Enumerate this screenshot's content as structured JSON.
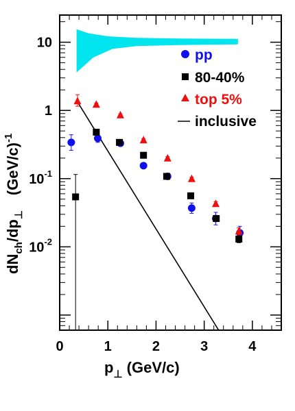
{
  "chart_data": {
    "type": "scatter",
    "title": "",
    "xlabel_parts": {
      "main": "p",
      "sub": "⊥",
      "unit": " (GeV/c)"
    },
    "ylabel_parts": {
      "main": "dN",
      "sub1": "ch",
      "mid": "/dp",
      "sub2": "⊥",
      "unit": "(GeV/c)",
      "unit_exp": "-1"
    },
    "xlim": [
      0,
      4.6
    ],
    "ylim": [
      0.0006,
      25
    ],
    "yscale": "log",
    "grid": false,
    "x_ticks": [
      {
        "v": 0,
        "label": "0"
      },
      {
        "v": 1,
        "label": "1"
      },
      {
        "v": 2,
        "label": "2"
      },
      {
        "v": 3,
        "label": "3"
      },
      {
        "v": 4,
        "label": "4"
      }
    ],
    "y_ticks": [
      {
        "v": 10,
        "base": "10",
        "exp": ""
      },
      {
        "v": 1,
        "base": "1",
        "exp": ""
      },
      {
        "v": 0.1,
        "base": "10",
        "exp": "-1"
      },
      {
        "v": 0.01,
        "base": "10",
        "exp": "-2"
      }
    ],
    "legend_position": "top-right",
    "series": [
      {
        "name": "pp",
        "marker": "circle",
        "color": "#1010ee",
        "points": [
          {
            "x": 0.24,
            "y": 0.34,
            "lo": 0.26,
            "hi": 0.44
          },
          {
            "x": 0.79,
            "y": 0.39,
            "lo": 0.34,
            "hi": 0.45
          },
          {
            "x": 1.26,
            "y": 0.33,
            "lo": 0.31,
            "hi": 0.355
          },
          {
            "x": 1.74,
            "y": 0.155,
            "lo": 0.148,
            "hi": 0.163
          },
          {
            "x": 2.24,
            "y": 0.108,
            "lo": 0.103,
            "hi": 0.113
          },
          {
            "x": 2.74,
            "y": 0.037,
            "lo": 0.031,
            "hi": 0.044
          },
          {
            "x": 3.24,
            "y": 0.026,
            "lo": 0.021,
            "hi": 0.032
          },
          {
            "x": 3.74,
            "y": 0.016,
            "lo": 0.012,
            "hi": 0.02
          }
        ]
      },
      {
        "name": "80-40%",
        "marker": "square",
        "color": "#000000",
        "points": [
          {
            "x": 0.33,
            "y": 0.054,
            "lo": 0.0004,
            "hi": 0.115
          },
          {
            "x": 0.76,
            "y": 0.48,
            "lo": 0.44,
            "hi": 0.52
          },
          {
            "x": 1.24,
            "y": 0.34,
            "lo": 0.32,
            "hi": 0.36
          },
          {
            "x": 1.74,
            "y": 0.22,
            "lo": 0.21,
            "hi": 0.23
          },
          {
            "x": 2.22,
            "y": 0.108,
            "lo": 0.103,
            "hi": 0.113
          },
          {
            "x": 2.72,
            "y": 0.056,
            "lo": 0.053,
            "hi": 0.059
          },
          {
            "x": 3.25,
            "y": 0.026,
            "lo": 0.024,
            "hi": 0.028
          },
          {
            "x": 3.72,
            "y": 0.013,
            "lo": 0.0115,
            "hi": 0.0145
          }
        ]
      },
      {
        "name": "top 5%",
        "marker": "triangle",
        "color": "#ee1010",
        "points": [
          {
            "x": 0.37,
            "y": 1.38,
            "lo": 1.15,
            "hi": 1.7
          },
          {
            "x": 0.76,
            "y": 1.23,
            "lo": 1.18,
            "hi": 1.28
          },
          {
            "x": 1.26,
            "y": 0.86,
            "lo": 0.83,
            "hi": 0.89
          },
          {
            "x": 1.74,
            "y": 0.37,
            "lo": 0.355,
            "hi": 0.385
          },
          {
            "x": 2.24,
            "y": 0.2,
            "lo": 0.19,
            "hi": 0.21
          },
          {
            "x": 2.74,
            "y": 0.1,
            "lo": 0.095,
            "hi": 0.105
          },
          {
            "x": 3.24,
            "y": 0.043,
            "lo": 0.04,
            "hi": 0.046
          },
          {
            "x": 3.72,
            "y": 0.017,
            "lo": 0.015,
            "hi": 0.019
          }
        ]
      },
      {
        "name": "inclusive",
        "marker": "line",
        "color": "#000000",
        "points": [
          {
            "x": 0.35,
            "y": 1.4
          },
          {
            "x": 3.3,
            "y": 0.0006
          }
        ]
      }
    ],
    "band": {
      "color": "#00e5ee",
      "upper": [
        {
          "x": 0.35,
          "y": 15.5
        },
        {
          "x": 0.6,
          "y": 13.5
        },
        {
          "x": 1.0,
          "y": 12.2
        },
        {
          "x": 1.6,
          "y": 11.6
        },
        {
          "x": 2.5,
          "y": 11.3
        },
        {
          "x": 3.7,
          "y": 11.2
        }
      ],
      "lower": [
        {
          "x": 3.7,
          "y": 9.3
        },
        {
          "x": 2.5,
          "y": 9.1
        },
        {
          "x": 1.6,
          "y": 8.8
        },
        {
          "x": 1.1,
          "y": 8.0
        },
        {
          "x": 0.7,
          "y": 6.0
        },
        {
          "x": 0.35,
          "y": 3.6
        }
      ]
    }
  }
}
